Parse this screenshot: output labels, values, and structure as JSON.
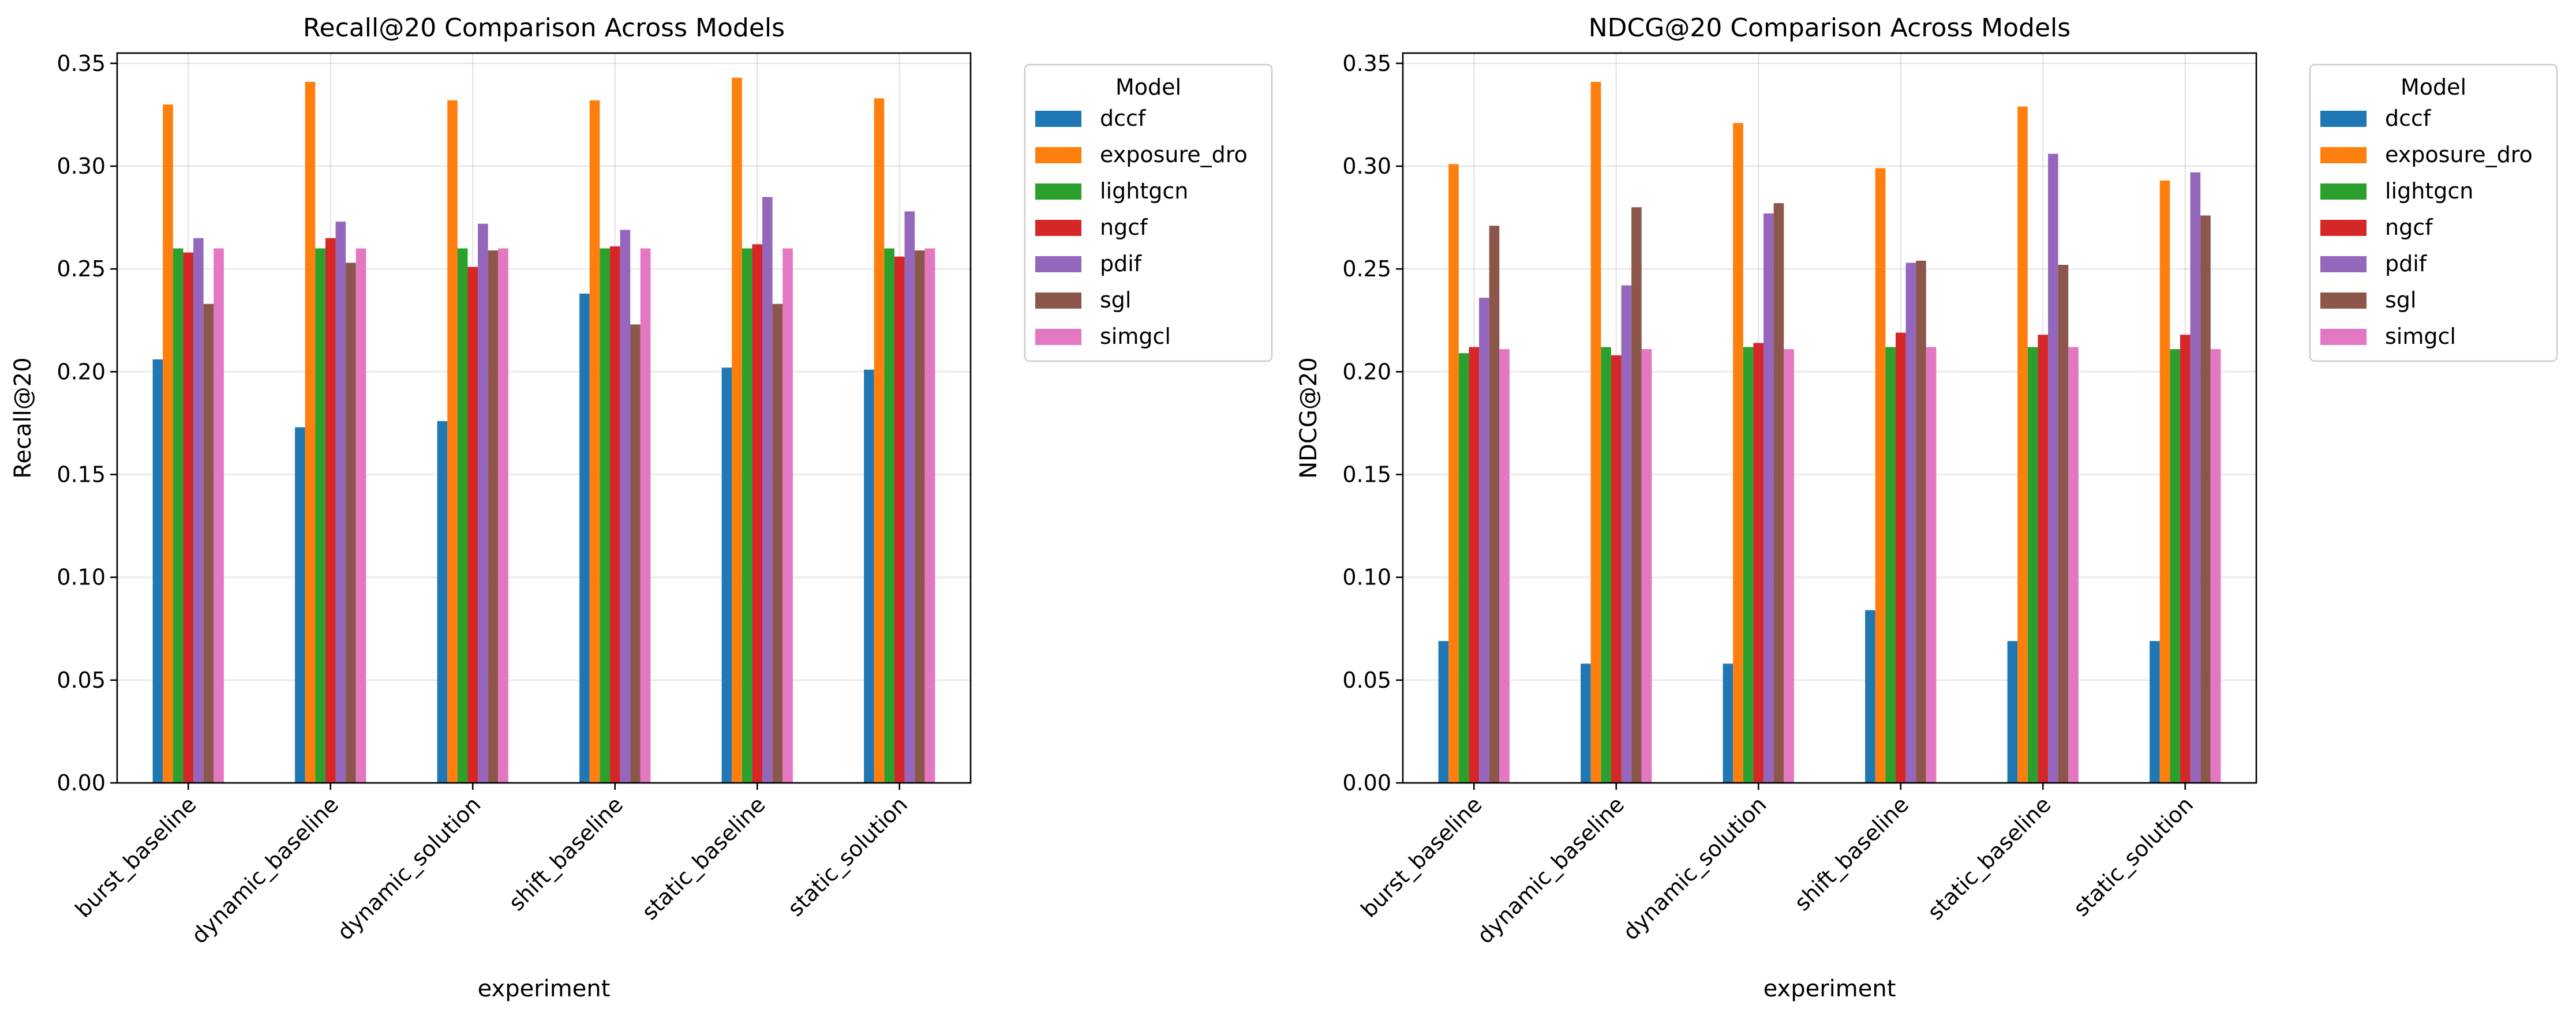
{
  "chart_data": [
    {
      "type": "bar",
      "title": "Recall@20 Comparison Across Models",
      "xlabel": "experiment",
      "ylabel": "Recall@20",
      "ylim": [
        0,
        0.355
      ],
      "yticks": [
        "0.00",
        "0.05",
        "0.10",
        "0.15",
        "0.20",
        "0.25",
        "0.30",
        "0.35"
      ],
      "grid": true,
      "legend_title": "Model",
      "legend_placement": "outside right, top",
      "categories": [
        "burst_baseline",
        "dynamic_baseline",
        "dynamic_solution",
        "shift_baseline",
        "static_baseline",
        "static_solution"
      ],
      "series": [
        {
          "name": "dccf",
          "color": "#1f77b4",
          "values": [
            0.206,
            0.173,
            0.176,
            0.238,
            0.202,
            0.201
          ]
        },
        {
          "name": "exposure_dro",
          "color": "#ff7f0e",
          "values": [
            0.33,
            0.341,
            0.332,
            0.332,
            0.343,
            0.333
          ]
        },
        {
          "name": "lightgcn",
          "color": "#2ca02c",
          "values": [
            0.26,
            0.26,
            0.26,
            0.26,
            0.26,
            0.26
          ]
        },
        {
          "name": "ngcf",
          "color": "#d62728",
          "values": [
            0.258,
            0.265,
            0.251,
            0.261,
            0.262,
            0.256
          ]
        },
        {
          "name": "pdif",
          "color": "#9467bd",
          "values": [
            0.265,
            0.273,
            0.272,
            0.269,
            0.285,
            0.278
          ]
        },
        {
          "name": "sgl",
          "color": "#8c564b",
          "values": [
            0.233,
            0.253,
            0.259,
            0.223,
            0.233,
            0.259
          ]
        },
        {
          "name": "simgcl",
          "color": "#e377c2",
          "values": [
            0.26,
            0.26,
            0.26,
            0.26,
            0.26,
            0.26
          ]
        }
      ]
    },
    {
      "type": "bar",
      "title": "NDCG@20 Comparison Across Models",
      "xlabel": "experiment",
      "ylabel": "NDCG@20",
      "ylim": [
        0,
        0.355
      ],
      "yticks": [
        "0.00",
        "0.05",
        "0.10",
        "0.15",
        "0.20",
        "0.25",
        "0.30",
        "0.35"
      ],
      "grid": true,
      "legend_title": "Model",
      "legend_placement": "outside right, top",
      "categories": [
        "burst_baseline",
        "dynamic_baseline",
        "dynamic_solution",
        "shift_baseline",
        "static_baseline",
        "static_solution"
      ],
      "series": [
        {
          "name": "dccf",
          "color": "#1f77b4",
          "values": [
            0.069,
            0.058,
            0.058,
            0.084,
            0.069,
            0.069
          ]
        },
        {
          "name": "exposure_dro",
          "color": "#ff7f0e",
          "values": [
            0.301,
            0.341,
            0.321,
            0.299,
            0.329,
            0.293
          ]
        },
        {
          "name": "lightgcn",
          "color": "#2ca02c",
          "values": [
            0.209,
            0.212,
            0.212,
            0.212,
            0.212,
            0.211
          ]
        },
        {
          "name": "ngcf",
          "color": "#d62728",
          "values": [
            0.212,
            0.208,
            0.214,
            0.219,
            0.218,
            0.218
          ]
        },
        {
          "name": "pdif",
          "color": "#9467bd",
          "values": [
            0.236,
            0.242,
            0.277,
            0.253,
            0.306,
            0.297
          ]
        },
        {
          "name": "sgl",
          "color": "#8c564b",
          "values": [
            0.271,
            0.28,
            0.282,
            0.254,
            0.252,
            0.276
          ]
        },
        {
          "name": "simgcl",
          "color": "#e377c2",
          "values": [
            0.211,
            0.211,
            0.211,
            0.212,
            0.212,
            0.211
          ]
        }
      ]
    }
  ]
}
